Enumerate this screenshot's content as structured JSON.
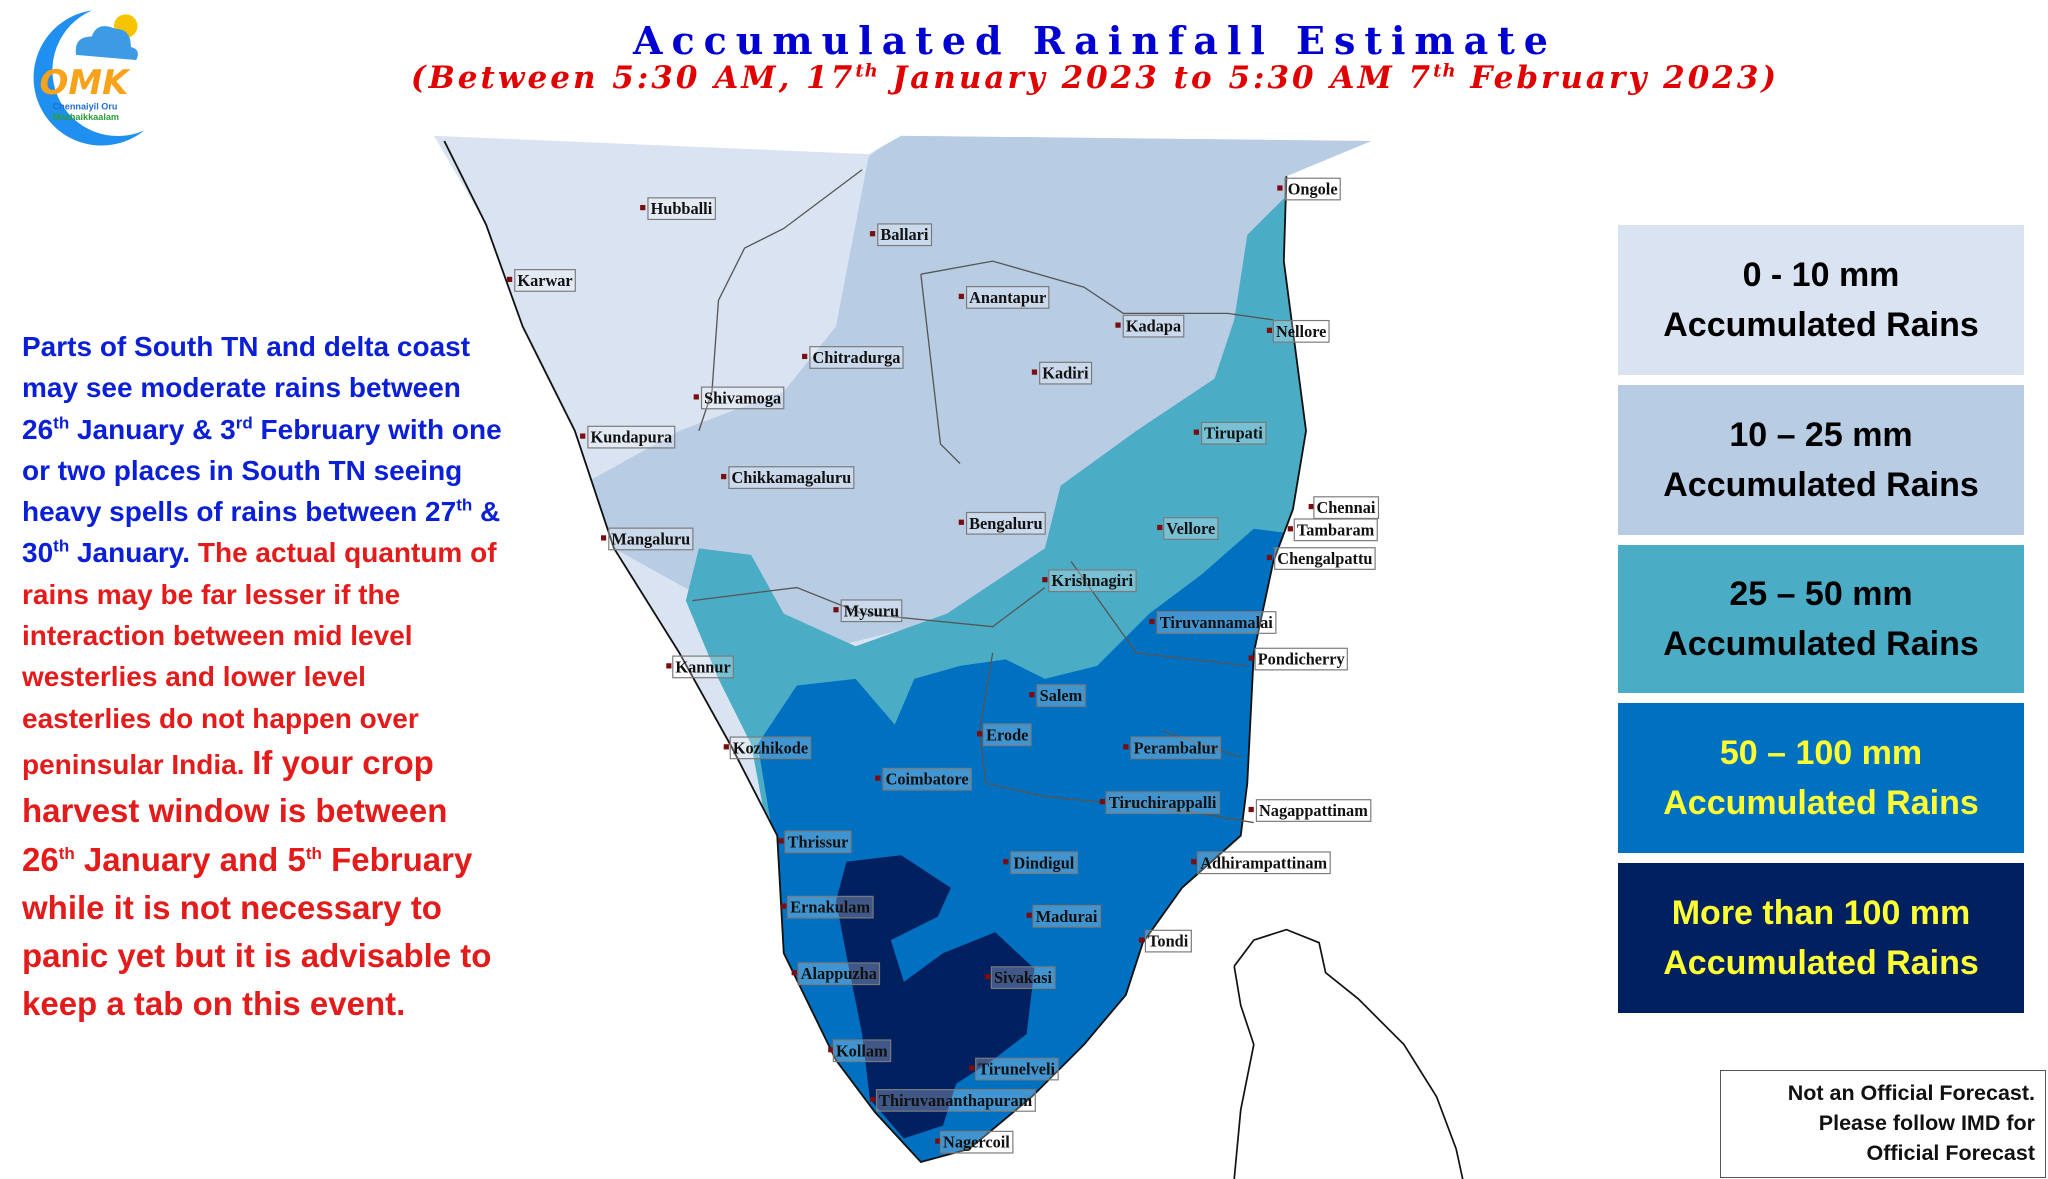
{
  "logo": {
    "letters": "OMK",
    "line1": "Chennaiyil Oru",
    "line2": "Mazhaikkaalam"
  },
  "header": {
    "title": "Accumulated Rainfall Estimate",
    "subtitle_parts": [
      "(Between 5:30 AM, 17",
      "th",
      " January 2023 to 5:30 AM 7",
      "th",
      " February 2023)"
    ]
  },
  "note": {
    "blue": [
      "Parts of South TN and delta coast may see moderate rains between 26",
      "th",
      " January & 3",
      "rd",
      " February with one or two places in South TN seeing heavy spells of rains between 27",
      "th",
      " & 30",
      "th",
      " January. "
    ],
    "red": [
      "The actual quantum of rains may be far lesser if the interaction between mid level westerlies and lower level easterlies do not happen over peninsular India. "
    ],
    "red_big": [
      "If your crop harvest window is between 26",
      "th",
      " January and 5",
      "th",
      " February while it is not necessary to panic yet but it is advisable to keep a tab on this event."
    ]
  },
  "legend": [
    {
      "range": "0 - 10  mm",
      "label": "Accumulated Rains",
      "color": "#dae3f1",
      "text_color": "#000000"
    },
    {
      "range": "10 – 25 mm",
      "label": "Accumulated Rains",
      "color": "#b8cce4",
      "text_color": "#000000"
    },
    {
      "range": "25 – 50  mm",
      "label": "Accumulated Rains",
      "color": "#4bacc6",
      "text_color": "#000000"
    },
    {
      "range": "50  – 100  mm",
      "label": "Accumulated Rains",
      "color": "#0070c0",
      "text_color": "#ffff33"
    },
    {
      "range": "More than 100 mm",
      "label": "Accumulated Rains",
      "color": "#002060",
      "text_color": "#ffff33"
    }
  ],
  "disclaimer": [
    "Not an Official Forecast.",
    "Please follow IMD for",
    "Official Forecast"
  ],
  "map": {
    "cities": [
      "Hubballi",
      "Ballari",
      "Karwar",
      "Ongole",
      "Anantapur",
      "Kadapa",
      "Nellore",
      "Chitradurga",
      "Kadiri",
      "Shivamoga",
      "Kundapura",
      "Tirupati",
      "Chikkamagaluru",
      "Chennai",
      "Tambaram",
      "Bengaluru",
      "Vellore",
      "Mangaluru",
      "Chengalpattu",
      "Krishnagiri",
      "Mysuru",
      "Tiruvannamalai",
      "Kannur",
      "Pondicherry",
      "Salem",
      "Erode",
      "Kozhikode",
      "Perambalur",
      "Coimbatore",
      "Tiruchirappalli",
      "Nagappattinam",
      "Thrissur",
      "Dindigul",
      "Adhirampattinam",
      "Ernakulam",
      "Madurai",
      "Tondi",
      "Alappuzha",
      "Sivakasi",
      "Kollam",
      "Tirunelveli",
      "Thiruvananthapuram",
      "Nagercoil"
    ]
  }
}
